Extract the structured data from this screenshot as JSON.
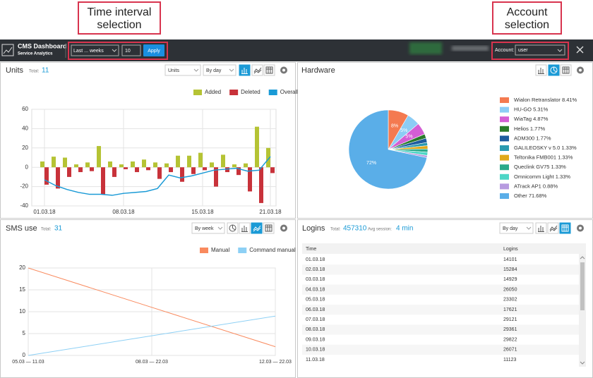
{
  "callouts": {
    "time_interval": "Time interval selection",
    "account": "Account selection"
  },
  "header": {
    "title": "CMS Dashboard",
    "subtitle": "Service Analytics",
    "interval": "Last ... weeks",
    "count": "10",
    "apply": "Apply",
    "account_label": "Account:",
    "account": "user"
  },
  "units_panel": {
    "title": "Units",
    "total_label": "Total:",
    "total": 11,
    "metric": "Units",
    "period": "By day"
  },
  "hardware_panel": {
    "title": "Hardware"
  },
  "sms_panel": {
    "title": "SMS use",
    "total_label": "Total:",
    "total": 31,
    "period": "By week"
  },
  "logins_panel": {
    "title": "Logins",
    "total_label": "Total:",
    "total": 457310,
    "avg_label": "Avg session:",
    "avg": "4 min",
    "period": "By day"
  },
  "table": {
    "header": [
      "Time",
      "Logins"
    ],
    "rows": [
      [
        "01.03.18",
        14101
      ],
      [
        "02.03.18",
        15284
      ],
      [
        "03.03.18",
        14929
      ],
      [
        "04.03.18",
        26050
      ],
      [
        "05.03.18",
        23302
      ],
      [
        "06.03.18",
        17621
      ],
      [
        "07.03.18",
        29121
      ],
      [
        "08.03.18",
        29361
      ],
      [
        "09.03.18",
        29822
      ],
      [
        "10.03.18",
        26071
      ],
      [
        "11.03.18",
        11123
      ]
    ]
  },
  "chart_data": [
    {
      "type": "combo",
      "categories": [
        "01.03.18",
        null,
        null,
        null,
        null,
        null,
        null,
        "08.03.18",
        null,
        null,
        null,
        null,
        null,
        null,
        "15.03.18",
        null,
        null,
        null,
        null,
        null,
        "21.03.18"
      ],
      "series": [
        {
          "name": "Added",
          "type": "bar",
          "color": "#b5c334",
          "values": [
            6,
            11,
            10,
            3,
            5,
            22,
            6,
            3,
            6,
            8,
            5,
            4,
            12,
            12,
            15,
            5,
            13,
            3,
            4,
            42,
            20
          ]
        },
        {
          "name": "Deleted",
          "type": "bar",
          "color": "#c8323a",
          "values": [
            -18,
            -22,
            -10,
            -5,
            -4,
            -28,
            -10,
            -2,
            -5,
            -3,
            -12,
            -5,
            -15,
            -7,
            -3,
            -20,
            -5,
            -8,
            -25,
            -37,
            -6
          ]
        },
        {
          "name": "Overall",
          "type": "line",
          "color": "#1a9ad6",
          "values": [
            -13,
            -19,
            -23,
            -26,
            -28,
            -28,
            -29,
            -27,
            -26,
            -25,
            -22,
            -8,
            -11,
            -9,
            -6,
            -3,
            -2,
            -1,
            -4,
            -3,
            11
          ]
        }
      ],
      "ylim": [
        -40,
        60
      ],
      "yticks": [
        -40,
        -20,
        0,
        20,
        40,
        60
      ],
      "grid": true
    },
    {
      "type": "pie",
      "categories": [
        "Wialon Retranslator 8.41%",
        "HU-GO 5.31%",
        "WiaTag 4.87%",
        "Helios 1.77%",
        "ADM300 1.77%",
        "GALILEOSKY v 5.0 1.33%",
        "Teltonika FMB001 1.33%",
        "Queclink GV75 1.33%",
        "Omnicomm Light 1.33%",
        "ATrack AP1 0.88%",
        "Other 71.68%"
      ],
      "values": [
        8.41,
        5.31,
        4.87,
        1.77,
        1.77,
        1.33,
        1.33,
        1.33,
        1.33,
        0.88,
        71.68
      ],
      "value_labels": [
        "8%",
        "5%",
        "5%",
        null,
        null,
        null,
        null,
        null,
        null,
        null,
        "72%"
      ],
      "colors": [
        "#f47a50",
        "#8ccdf5",
        "#d45ed4",
        "#2a7a2a",
        "#1e5c9e",
        "#2a9ab0",
        "#e0a91a",
        "#2aaa8a",
        "#4dd6c6",
        "#b79ae0",
        "#5aaee8"
      ]
    },
    {
      "type": "line",
      "categories": [
        "05.03 — 11.03",
        "08.03 — 22.03",
        "12.03 — 22.03"
      ],
      "series": [
        {
          "name": "Manual",
          "color": "#f98a5e",
          "values": [
            20,
            11,
            2
          ]
        },
        {
          "name": "Command manual",
          "color": "#8dd0f5",
          "values": [
            0,
            4.5,
            9
          ]
        }
      ],
      "ylim": [
        0,
        20
      ],
      "yticks": [
        0,
        5,
        10,
        15,
        20
      ],
      "grid": true
    }
  ]
}
